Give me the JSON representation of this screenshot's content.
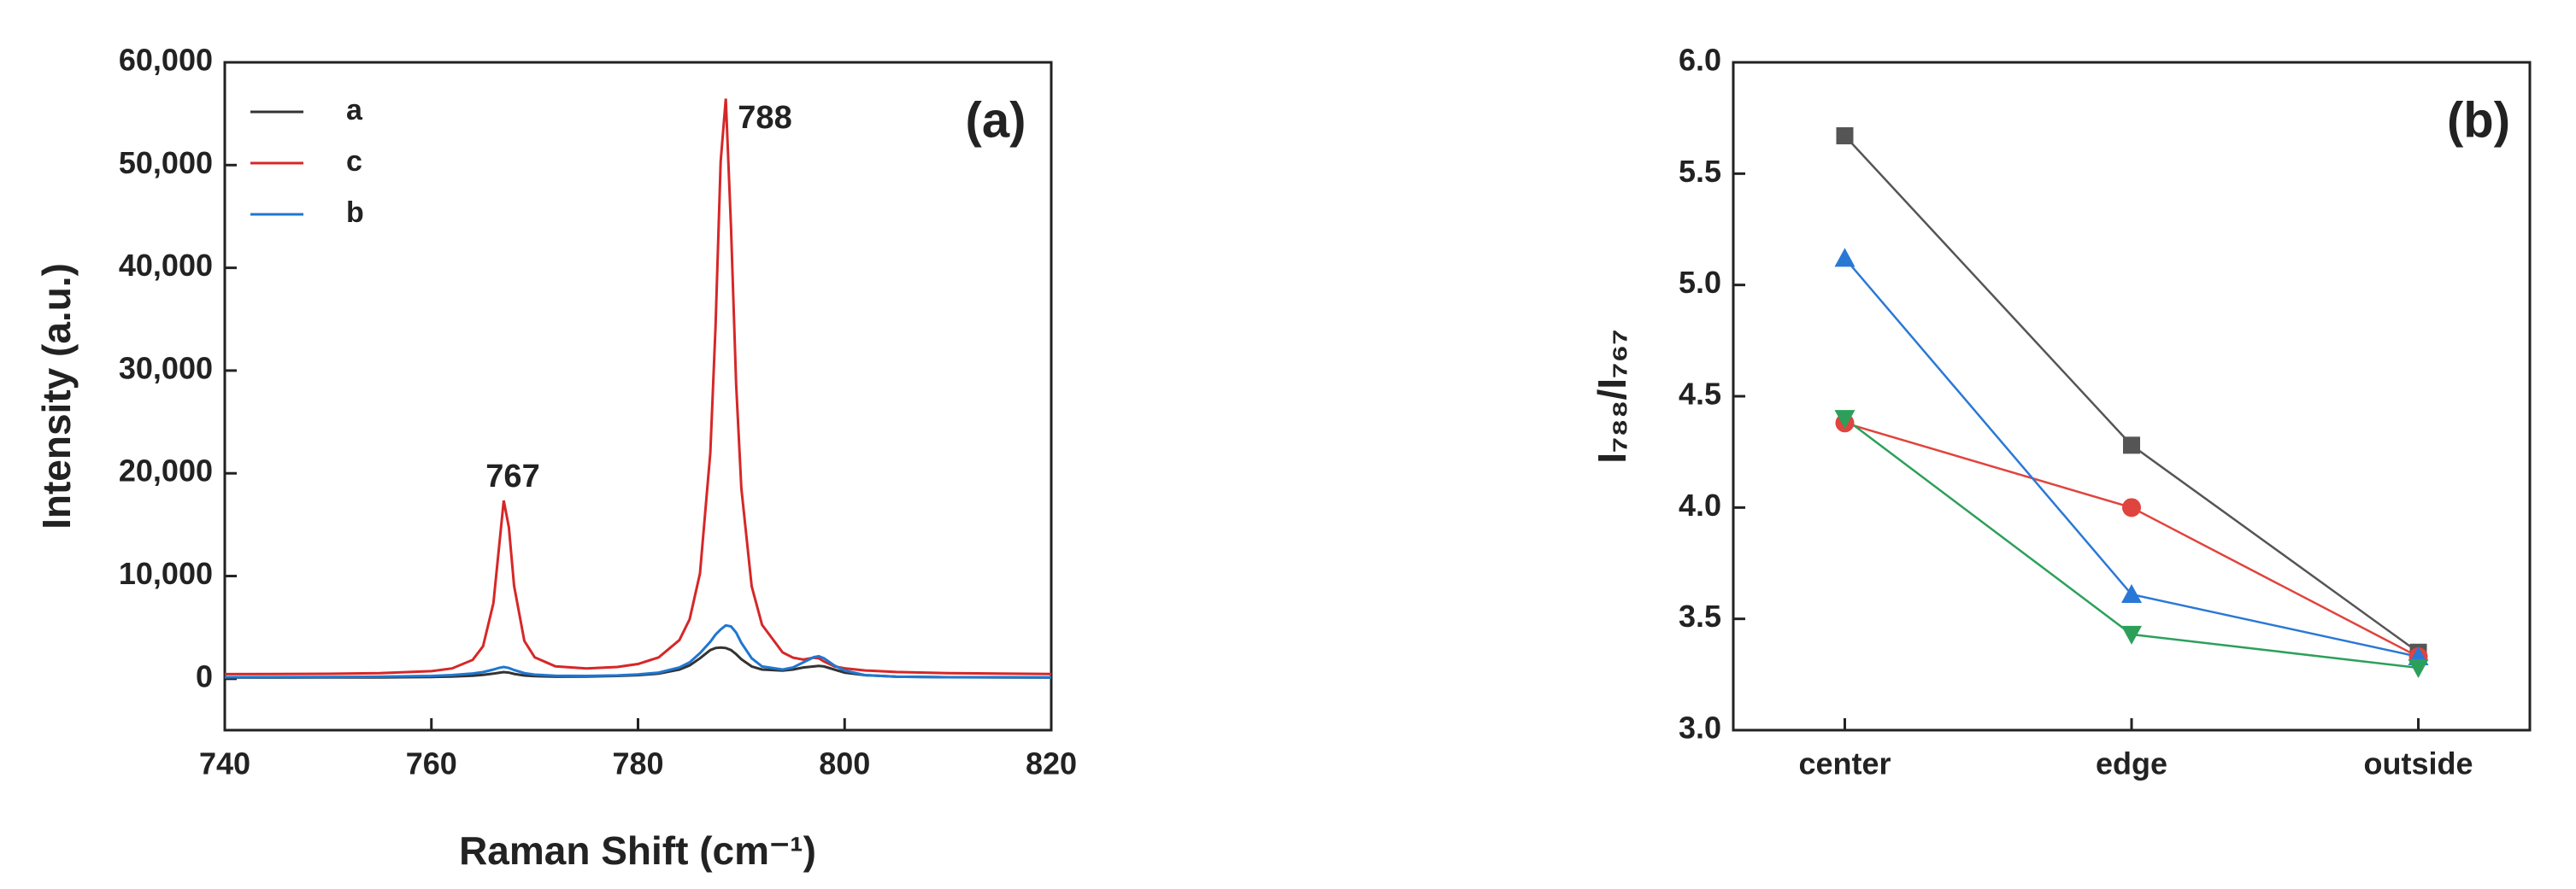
{
  "chart_data": [
    {
      "type": "line",
      "panel_label": "(a)",
      "x_label": "Raman Shift (cm⁻¹)",
      "y_label": "Intensity (a.u.)",
      "annotations": [
        "767",
        "788"
      ],
      "xlim": [
        740,
        820
      ],
      "xticks": [
        740,
        760,
        780,
        800,
        820
      ],
      "ylim": [
        -5000,
        60000
      ],
      "yticks": [
        {
          "value": 0,
          "label": "0"
        },
        {
          "value": 10000,
          "label": "10,000"
        },
        {
          "value": 20000,
          "label": "20,000"
        },
        {
          "value": 30000,
          "label": "30,000"
        },
        {
          "value": 40000,
          "label": "40,000"
        },
        {
          "value": 50000,
          "label": "50,000"
        },
        {
          "value": 60000,
          "label": "60,000"
        }
      ],
      "legend": "top-left",
      "x": [
        740,
        745,
        750,
        755,
        760,
        762,
        764,
        765,
        766,
        766.5,
        767,
        767.5,
        768,
        769,
        770,
        772,
        775,
        778,
        780,
        782,
        784,
        785,
        786,
        787,
        787.5,
        788,
        788.5,
        789,
        789.5,
        790,
        791,
        792,
        794,
        795,
        796,
        797,
        797.5,
        798,
        799,
        800,
        802,
        805,
        810,
        815,
        820
      ],
      "series": [
        {
          "name": "a",
          "color": "#333333",
          "values": [
            120,
            120,
            130,
            140,
            180,
            220,
            300,
            380,
            500,
            580,
            650,
            600,
            480,
            320,
            250,
            200,
            220,
            280,
            350,
            500,
            900,
            1300,
            2000,
            2800,
            3000,
            3050,
            3000,
            2800,
            2400,
            1900,
            1200,
            900,
            800,
            900,
            1100,
            1200,
            1250,
            1200,
            900,
            600,
            350,
            200,
            150,
            130,
            120
          ]
        },
        {
          "name": "c",
          "color": "#d62728",
          "values": [
            450,
            460,
            490,
            550,
            740,
            1010,
            1840,
            3170,
            7360,
            12310,
            17350,
            14740,
            9050,
            3690,
            2090,
            1210,
            1000,
            1150,
            1440,
            2080,
            3770,
            5800,
            10250,
            22000,
            34280,
            50340,
            56470,
            43960,
            28680,
            18540,
            9000,
            5260,
            2560,
            2060,
            1870,
            2050,
            1990,
            1680,
            1210,
            1020,
            810,
            660,
            550,
            500,
            470
          ]
        },
        {
          "name": "b",
          "color": "#1f77d0",
          "values": [
            150,
            160,
            170,
            200,
            280,
            360,
            520,
            650,
            900,
            1050,
            1150,
            1050,
            850,
            550,
            400,
            300,
            280,
            330,
            420,
            600,
            1100,
            1600,
            2500,
            3600,
            4300,
            4800,
            5200,
            5100,
            4500,
            3500,
            2000,
            1200,
            900,
            1100,
            1600,
            2100,
            2200,
            2000,
            1300,
            800,
            350,
            200,
            150,
            150,
            140
          ]
        }
      ]
    },
    {
      "type": "line-marker",
      "panel_label": "(b)",
      "y_label": "I₇₈₈/I₇₆₇",
      "categories": [
        "center",
        "edge",
        "outside"
      ],
      "ylim": [
        3.0,
        6.0
      ],
      "yticks": [
        {
          "value": 3.0,
          "label": "3.0"
        },
        {
          "value": 3.5,
          "label": "3.5"
        },
        {
          "value": 4.0,
          "label": "4.0"
        },
        {
          "value": 4.5,
          "label": "4.5"
        },
        {
          "value": 5.0,
          "label": "5.0"
        },
        {
          "value": 5.5,
          "label": "5.5"
        },
        {
          "value": 6.0,
          "label": "6.0"
        }
      ],
      "series": [
        {
          "color": "#555555",
          "marker": "square",
          "values": [
            5.67,
            4.28,
            3.35
          ]
        },
        {
          "color": "#e0443e",
          "marker": "circle",
          "values": [
            4.38,
            4.0,
            3.33
          ]
        },
        {
          "color": "#2a78d6",
          "marker": "triangle-up",
          "values": [
            5.12,
            3.61,
            3.33
          ]
        },
        {
          "color": "#2ca05a",
          "marker": "triangle-down",
          "values": [
            4.4,
            3.43,
            3.28
          ]
        }
      ]
    }
  ]
}
